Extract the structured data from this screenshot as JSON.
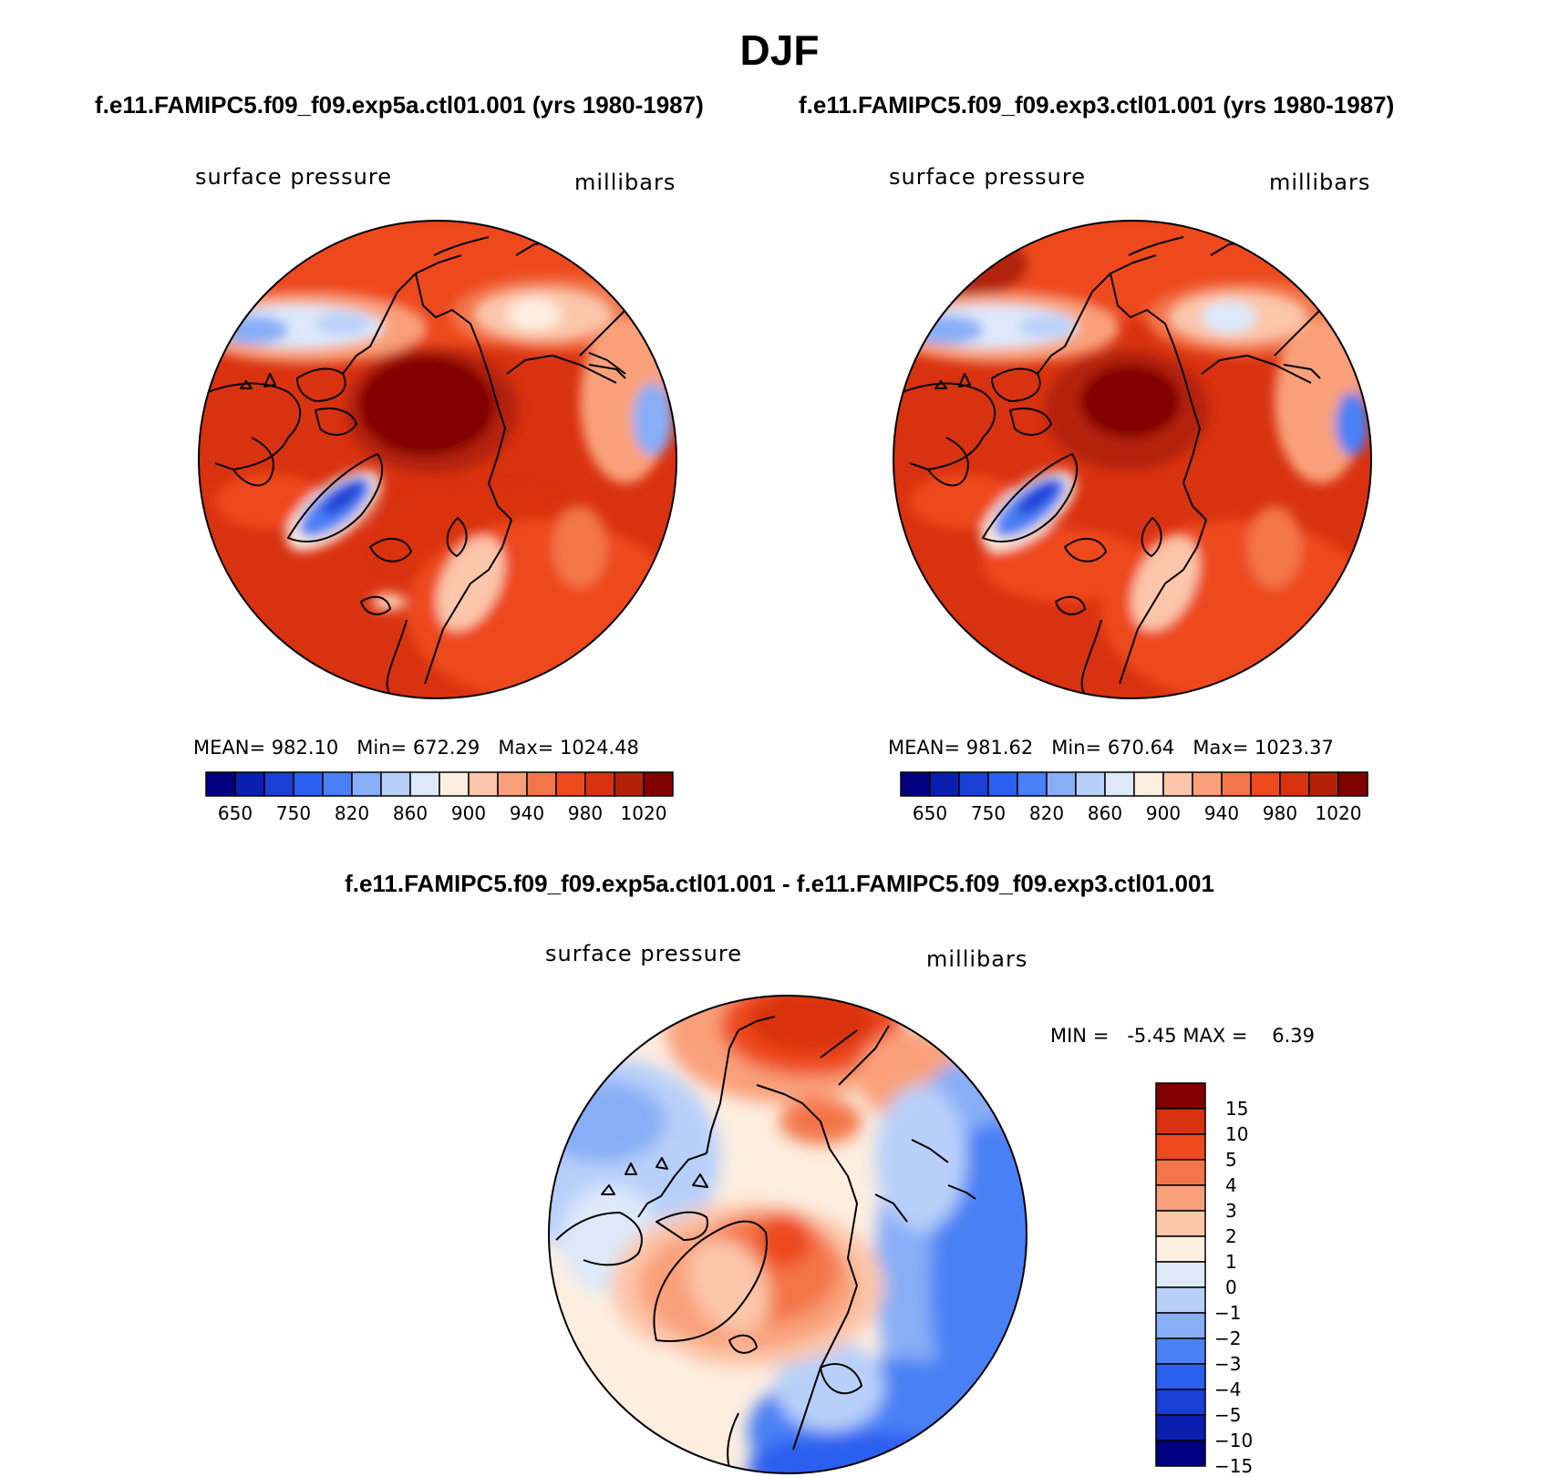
{
  "page": {
    "title": "DJF",
    "top_subtitle_left": "f.e11.FAMIPC5.f09_f09.exp5a.ctl01.001 (yrs 1980-1987)",
    "top_subtitle_right": "f.e11.FAMIPC5.f09_f09.exp3.ctl01.001 (yrs 1980-1987)",
    "diff_subtitle": "f.e11.FAMIPC5.f09_f09.exp5a.ctl01.001 - f.e11.FAMIPC5.f09_f09.exp3.ctl01.001"
  },
  "colors": {
    "abs_scale": [
      "#000080",
      "#0a1fb0",
      "#1a3fd6",
      "#2a5ff0",
      "#4a80f5",
      "#88aef7",
      "#b8d0f9",
      "#dde9fa",
      "#fdeee0",
      "#fcc6aa",
      "#f9a07a",
      "#f3764a",
      "#ee4a1e",
      "#d93210",
      "#b32208",
      "#820000"
    ],
    "diff_scale": [
      "#000080",
      "#0a1fb0",
      "#1a3fd6",
      "#2a5ff0",
      "#4a80f5",
      "#88aef7",
      "#b8d0f9",
      "#dde9fa",
      "#fdeee0",
      "#fcc6aa",
      "#f9a07a",
      "#f3764a",
      "#ee4a1e",
      "#d93210",
      "#820000"
    ]
  },
  "chart_data": [
    {
      "type": "heatmap",
      "panel": "exp5a",
      "projection": "polar-stereographic north",
      "variable_label": "surface pressure",
      "units_label": "millibars",
      "stats": {
        "mean_label": "MEAN=",
        "mean": "982.10",
        "min_label": "Min=",
        "min": "672.29",
        "max_label": "Max=",
        "max": "1024.48"
      },
      "colorbar_ticks": [
        "650",
        "750",
        "820",
        "860",
        "900",
        "940",
        "980",
        "1020"
      ]
    },
    {
      "type": "heatmap",
      "panel": "exp3",
      "projection": "polar-stereographic north",
      "variable_label": "surface pressure",
      "units_label": "millibars",
      "stats": {
        "mean_label": "MEAN=",
        "mean": "981.62",
        "min_label": "Min=",
        "min": "670.64",
        "max_label": "Max=",
        "max": "1023.37"
      },
      "colorbar_ticks": [
        "650",
        "750",
        "820",
        "860",
        "900",
        "940",
        "980",
        "1020"
      ]
    },
    {
      "type": "heatmap",
      "panel": "difference",
      "projection": "polar-stereographic north",
      "variable_label": "surface pressure",
      "units_label": "millibars",
      "stats": {
        "min_label": "MIN =",
        "min": "-5.45",
        "max_label": "MAX =",
        "max": "6.39"
      },
      "colorbar_ticks": [
        "15",
        "10",
        "5",
        "4",
        "3",
        "2",
        "1",
        "0",
        "−1",
        "−2",
        "−3",
        "−4",
        "−5",
        "−10",
        "−15"
      ]
    }
  ]
}
